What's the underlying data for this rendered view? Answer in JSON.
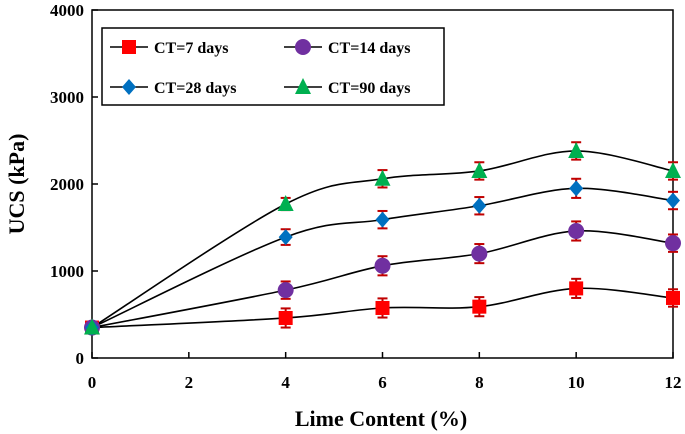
{
  "chart_data": {
    "type": "line",
    "title": "",
    "xlabel": "Lime Content (%)",
    "ylabel": "UCS (kPa)",
    "xlim": [
      0,
      12
    ],
    "ylim": [
      0,
      4000
    ],
    "xticks": [
      0,
      2,
      4,
      6,
      8,
      10,
      12
    ],
    "yticks": [
      0,
      1000,
      2000,
      3000,
      4000
    ],
    "x": [
      0,
      4,
      6,
      8,
      10,
      12
    ],
    "grid": false,
    "legend_position": "top-left",
    "series": [
      {
        "name": "CT=7 days",
        "marker": "square",
        "color": "#ff0000",
        "values": [
          350,
          460,
          575,
          590,
          800,
          690
        ],
        "error": [
          40,
          110,
          110,
          110,
          110,
          100
        ]
      },
      {
        "name": "CT=14 days",
        "marker": "circle",
        "color": "#7030a0",
        "values": [
          350,
          780,
          1060,
          1200,
          1460,
          1320
        ],
        "error": [
          40,
          100,
          110,
          110,
          110,
          100
        ]
      },
      {
        "name": "CT=28 days",
        "marker": "diamond",
        "color": "#0070c0",
        "values": [
          350,
          1390,
          1590,
          1750,
          1950,
          1810
        ],
        "error": [
          40,
          90,
          100,
          100,
          110,
          100
        ]
      },
      {
        "name": "CT=90 days",
        "marker": "triangle",
        "color": "#00b050",
        "values": [
          350,
          1770,
          2060,
          2150,
          2380,
          2150
        ],
        "error": [
          40,
          70,
          100,
          100,
          100,
          100
        ]
      }
    ],
    "error_bar_color": "#c00000",
    "line_color": "#000000"
  }
}
